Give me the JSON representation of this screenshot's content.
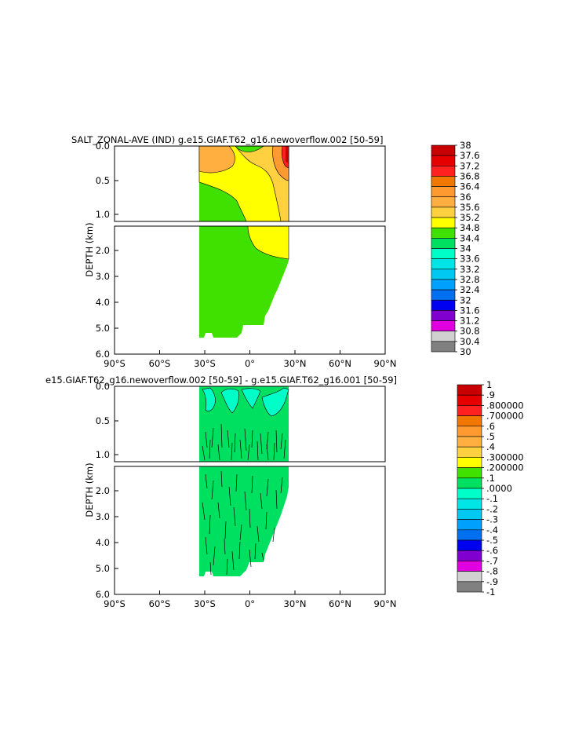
{
  "panels": [
    {
      "title": "SALT_ZONAL-AVE (IND) g.e15.GIAF.T62_g16.newoverflow.002 [50-59]",
      "ylabel": "DEPTH (km)",
      "upper_ticks": [
        "0.0",
        "0.5",
        "1.0"
      ],
      "lower_ticks": [
        "2.0",
        "3.0",
        "4.0",
        "5.0",
        "6.0"
      ],
      "x_ticks": [
        "90°S",
        "60°S",
        "30°S",
        "0°",
        "30°N",
        "60°N",
        "90°N"
      ],
      "colorbar_labels": [
        "38",
        "37.6",
        "37.2",
        "36.8",
        "36.4",
        "36",
        "35.6",
        "35.2",
        "34.8",
        "34.4",
        "34",
        "33.6",
        "33.2",
        "32.8",
        "32.4",
        "32",
        "31.6",
        "31.2",
        "30.8",
        "30.4",
        "30"
      ]
    },
    {
      "title": "e15.GIAF.T62_g16.newoverflow.002 [50-59] - g.e15.GIAF.T62_g16.001 [50-59]",
      "ylabel": "DEPTH (km)",
      "upper_ticks": [
        "0.0",
        "0.5",
        "1.0"
      ],
      "lower_ticks": [
        "2.0",
        "3.0",
        "4.0",
        "5.0",
        "6.0"
      ],
      "x_ticks": [
        "90°S",
        "60°S",
        "30°S",
        "0°",
        "30°N",
        "60°N",
        "90°N"
      ],
      "colorbar_labels": [
        "1",
        ".9",
        ".800000",
        ".700000",
        ".6",
        ".5",
        ".4",
        ".300000",
        ".200000",
        ".1",
        ".0000",
        "-.1",
        "-.2",
        "-.3",
        "-.4",
        "-.5",
        "-.6",
        "-.7",
        "-.8",
        "-.9",
        "-1"
      ]
    }
  ],
  "colorbar_colors": [
    "#c80000",
    "#e60000",
    "#ff2020",
    "#f07800",
    "#ff9a30",
    "#ffae40",
    "#ffd040",
    "#ffff00",
    "#40e000",
    "#00e060",
    "#00ffc8",
    "#00e6e6",
    "#00c8f0",
    "#00a0ff",
    "#0070f0",
    "#0000f0",
    "#8000d0",
    "#e000e0",
    "#d0d0d0",
    "#808080"
  ],
  "chart_data": [
    {
      "type": "heatmap",
      "title": "SALT_ZONAL-AVE (IND) g.e15.GIAF.T62_g16.newoverflow.002 [50-59]",
      "xlabel": "",
      "ylabel": "DEPTH (km)",
      "xlim": [
        -90,
        90
      ],
      "ylim_km": [
        0,
        6
      ],
      "data_extent_lat": [
        -35,
        25
      ],
      "color_scale": {
        "min": 30,
        "max": 38,
        "step": 0.4
      },
      "regions": [
        {
          "depth_km": [
            0,
            0.4
          ],
          "lat": [
            -35,
            -5
          ],
          "value": 35.4
        },
        {
          "depth_km": [
            0,
            0.15
          ],
          "lat": [
            -5,
            15
          ],
          "value": 34.6
        },
        {
          "depth_km": [
            0,
            1.5
          ],
          "lat": [
            15,
            25
          ],
          "value": 36.0
        },
        {
          "depth_km": [
            0,
            0.5
          ],
          "lat": [
            22,
            25
          ],
          "value": 37.8
        },
        {
          "depth_km": [
            0.4,
            1.2
          ],
          "lat": [
            -35,
            0
          ],
          "value": 34.6
        },
        {
          "depth_km": [
            0.5,
            2.3
          ],
          "lat": [
            0,
            25
          ],
          "value": 35.0
        },
        {
          "depth_km": [
            1.2,
            5.4
          ],
          "lat": [
            -35,
            25
          ],
          "value": 34.7
        }
      ]
    },
    {
      "type": "heatmap",
      "title": "e15.GIAF.T62_g16.newoverflow.002 [50-59] - g.e15.GIAF.T62_g16.001 [50-59]",
      "xlabel": "",
      "ylabel": "DEPTH (km)",
      "xlim": [
        -90,
        90
      ],
      "ylim_km": [
        0,
        6
      ],
      "data_extent_lat": [
        -35,
        25
      ],
      "color_scale": {
        "min": -1,
        "max": 1,
        "step": 0.1
      },
      "regions": [
        {
          "depth_km": [
            0,
            0.9
          ],
          "lat": [
            -35,
            25
          ],
          "value": -0.05
        },
        {
          "depth_km": [
            0,
            5.4
          ],
          "lat": [
            -35,
            25
          ],
          "value": 0.02
        }
      ]
    }
  ]
}
